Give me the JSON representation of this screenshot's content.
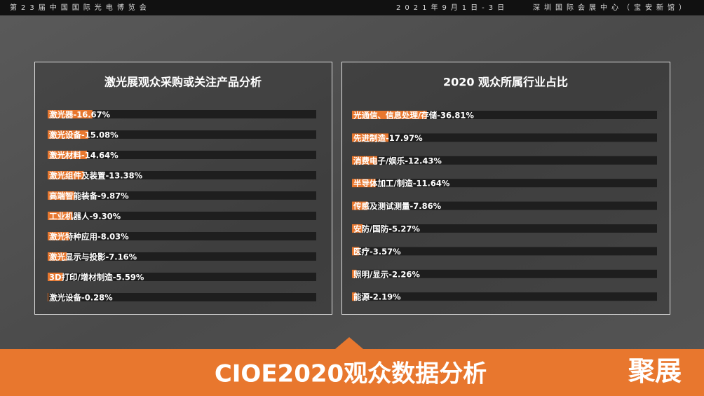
{
  "header": {
    "event": "第23届中国国际光电博览会",
    "date": "2021年9月1日-3日",
    "venue": "深圳国际会展中心（宝安新馆）"
  },
  "chart_data": [
    {
      "type": "bar",
      "title": "激光展观众采购或关注产品分析",
      "color": "#e8772e",
      "track_color": "#1e1e1e",
      "xlim": [
        0,
        100
      ],
      "categories": [
        "激光器-16.67%",
        "激光设备-15.08%",
        "激光材料-14.64%",
        "激光组件及装置-13.38%",
        "高端智能装备-9.87%",
        "工业机器人-9.30%",
        "激光特种应用-8.03%",
        "激光显示与投影-7.16%",
        "3D打印/增材制造-5.59%",
        "激光设备-0.28%"
      ],
      "values": [
        16.67,
        15.08,
        14.64,
        13.38,
        9.87,
        9.3,
        8.03,
        7.16,
        5.59,
        0.28
      ]
    },
    {
      "type": "bar",
      "title": "2020 观众所属行业占比",
      "color": "#e8772e",
      "track_color": "#1e1e1e",
      "xlim": [
        0,
        150
      ],
      "categories": [
        "光通信、信息处理/存储-36.81%",
        "先进制造-17.97%",
        "消费电子/娱乐-12.43%",
        "半导体加工/制造-11.64%",
        "传感及测试测量-7.86%",
        "安防/国防-5.27%",
        "医疗-3.57%",
        "照明/显示-2.26%",
        "能源-2.19%"
      ],
      "values": [
        36.81,
        17.97,
        12.43,
        11.64,
        7.86,
        5.27,
        3.57,
        2.26,
        2.19
      ]
    }
  ],
  "footer": {
    "title": "CIOE2020观众数据分析",
    "logo": "聚展"
  }
}
